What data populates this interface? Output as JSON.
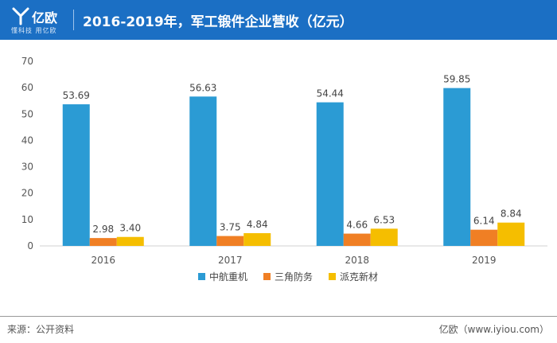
{
  "header": {
    "brand_name": "亿欧",
    "brand_tagline": "懂科技 用亿欧",
    "title": "2016-2019年，军工锻件企业营收（亿元）"
  },
  "colors": {
    "header_bg": "#1b6fc4",
    "series_1": "#2b9bd4",
    "series_2": "#f07f24",
    "series_3": "#f5be00"
  },
  "chart_data": {
    "type": "bar",
    "title": "2016-2019年，军工锻件企业营收（亿元）",
    "xlabel": "",
    "ylabel": "",
    "categories": [
      "2016",
      "2017",
      "2018",
      "2019"
    ],
    "ylim": [
      0,
      70
    ],
    "yticks": [
      "0",
      "10",
      "20",
      "30",
      "40",
      "50",
      "60",
      "70"
    ],
    "grid": false,
    "legend_position": "bottom",
    "series": [
      {
        "name": "中航重机",
        "color": "#2b9bd4",
        "values": [
          53.69,
          56.63,
          54.44,
          59.85
        ],
        "labels": [
          "53.69",
          "56.63",
          "54.44",
          "59.85"
        ]
      },
      {
        "name": "三角防务",
        "color": "#f07f24",
        "values": [
          2.98,
          3.75,
          4.66,
          6.14
        ],
        "labels": [
          "2.98",
          "3.75",
          "4.66",
          "6.14"
        ]
      },
      {
        "name": "派克新材",
        "color": "#f5be00",
        "values": [
          3.4,
          4.84,
          6.53,
          8.84
        ],
        "labels": [
          "3.40",
          "4.84",
          "6.53",
          "8.84"
        ]
      }
    ]
  },
  "footer": {
    "source": "来源：公开资料",
    "credit": "亿欧（www.iyiou.com）"
  }
}
